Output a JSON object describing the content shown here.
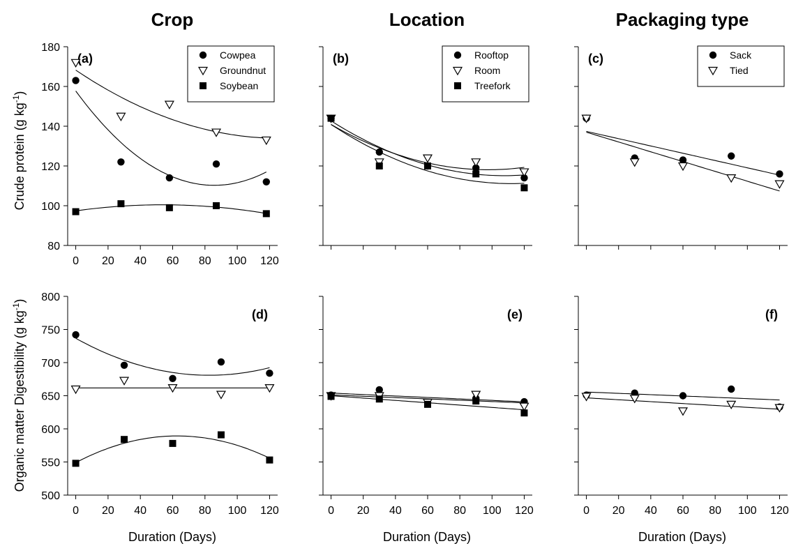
{
  "figure": {
    "column_titles": [
      "Crop",
      "Location",
      "Packaging type"
    ],
    "row_ylabels": [
      "Crude protein (g kg-1)",
      "Organic matter Digestibility (g kg-1)"
    ],
    "xlabel": "Duration (Days)",
    "colors": {
      "ink": "#000000",
      "background": "#ffffff"
    }
  },
  "chart_data": [
    {
      "type": "scatter",
      "panel_label": "(a)",
      "ylim": [
        80,
        180
      ],
      "yticks": [
        "80",
        "100",
        "120",
        "140",
        "160",
        "180"
      ],
      "xticks": [
        "0",
        "20",
        "40",
        "60",
        "80",
        "100",
        "120"
      ],
      "xlim": [
        -5,
        125
      ],
      "legend": "top-right",
      "x": [
        0,
        28,
        58,
        87,
        118
      ],
      "series": [
        {
          "name": "Cowpea",
          "marker": "circle",
          "values": [
            163,
            122,
            114,
            121,
            112
          ]
        },
        {
          "name": "Groundnut",
          "marker": "triangle",
          "values": [
            172,
            145,
            151,
            137,
            133
          ]
        },
        {
          "name": "Soybean",
          "marker": "square",
          "values": [
            97,
            101,
            99,
            100,
            96
          ]
        }
      ]
    },
    {
      "type": "scatter",
      "panel_label": "(b)",
      "ylim": [
        80,
        180
      ],
      "xticks": [],
      "xlim": [
        -5,
        125
      ],
      "legend": "top-right",
      "x": [
        0,
        30,
        60,
        90,
        120
      ],
      "series": [
        {
          "name": "Rooftop",
          "marker": "circle",
          "values": [
            144,
            127,
            120,
            119,
            114
          ]
        },
        {
          "name": "Room",
          "marker": "triangle",
          "values": [
            144,
            122,
            124,
            122,
            117
          ]
        },
        {
          "name": "Treefork",
          "marker": "square",
          "values": [
            144,
            120,
            120,
            116,
            109
          ]
        }
      ]
    },
    {
      "type": "scatter",
      "panel_label": "(c)",
      "ylim": [
        80,
        180
      ],
      "xticks": [],
      "xlim": [
        -5,
        125
      ],
      "legend": "top-right",
      "x": [
        0,
        30,
        60,
        90,
        120
      ],
      "series": [
        {
          "name": "Sack",
          "marker": "circle",
          "values": [
            144,
            124,
            123,
            125,
            116
          ]
        },
        {
          "name": "Tied",
          "marker": "triangle",
          "values": [
            144,
            122,
            120,
            114,
            111
          ]
        }
      ]
    },
    {
      "type": "scatter",
      "panel_label": "(d)",
      "ylim": [
        500,
        800
      ],
      "yticks": [
        "500",
        "550",
        "600",
        "650",
        "700",
        "750",
        "800"
      ],
      "xticks": [
        "0",
        "20",
        "40",
        "60",
        "80",
        "100",
        "120"
      ],
      "xlim": [
        -5,
        125
      ],
      "x": [
        0,
        30,
        60,
        90,
        120
      ],
      "series": [
        {
          "marker": "circle",
          "values": [
            742,
            696,
            676,
            701,
            684
          ]
        },
        {
          "marker": "triangle",
          "values": [
            660,
            673,
            662,
            652,
            662
          ]
        },
        {
          "marker": "square",
          "values": [
            548,
            584,
            578,
            591,
            553
          ]
        }
      ]
    },
    {
      "type": "scatter",
      "panel_label": "(e)",
      "ylim": [
        500,
        800
      ],
      "xticks": [
        "0",
        "20",
        "40",
        "60",
        "80",
        "100",
        "120"
      ],
      "xlim": [
        -5,
        125
      ],
      "x": [
        0,
        30,
        60,
        90,
        120
      ],
      "series": [
        {
          "marker": "circle",
          "values": [
            651,
            659,
            640,
            646,
            641
          ]
        },
        {
          "marker": "triangle",
          "values": [
            650,
            650,
            640,
            652,
            634
          ]
        },
        {
          "marker": "square",
          "values": [
            649,
            645,
            637,
            642,
            624
          ]
        }
      ]
    },
    {
      "type": "scatter",
      "panel_label": "(f)",
      "ylim": [
        500,
        800
      ],
      "xticks": [
        "0",
        "20",
        "40",
        "60",
        "80",
        "100",
        "120"
      ],
      "xlim": [
        -5,
        125
      ],
      "x": [
        0,
        30,
        60,
        90,
        120
      ],
      "series": [
        {
          "marker": "circle",
          "values": [
            651,
            654,
            650,
            660,
            633
          ]
        },
        {
          "marker": "triangle",
          "values": [
            649,
            646,
            627,
            637,
            632
          ]
        }
      ]
    }
  ]
}
